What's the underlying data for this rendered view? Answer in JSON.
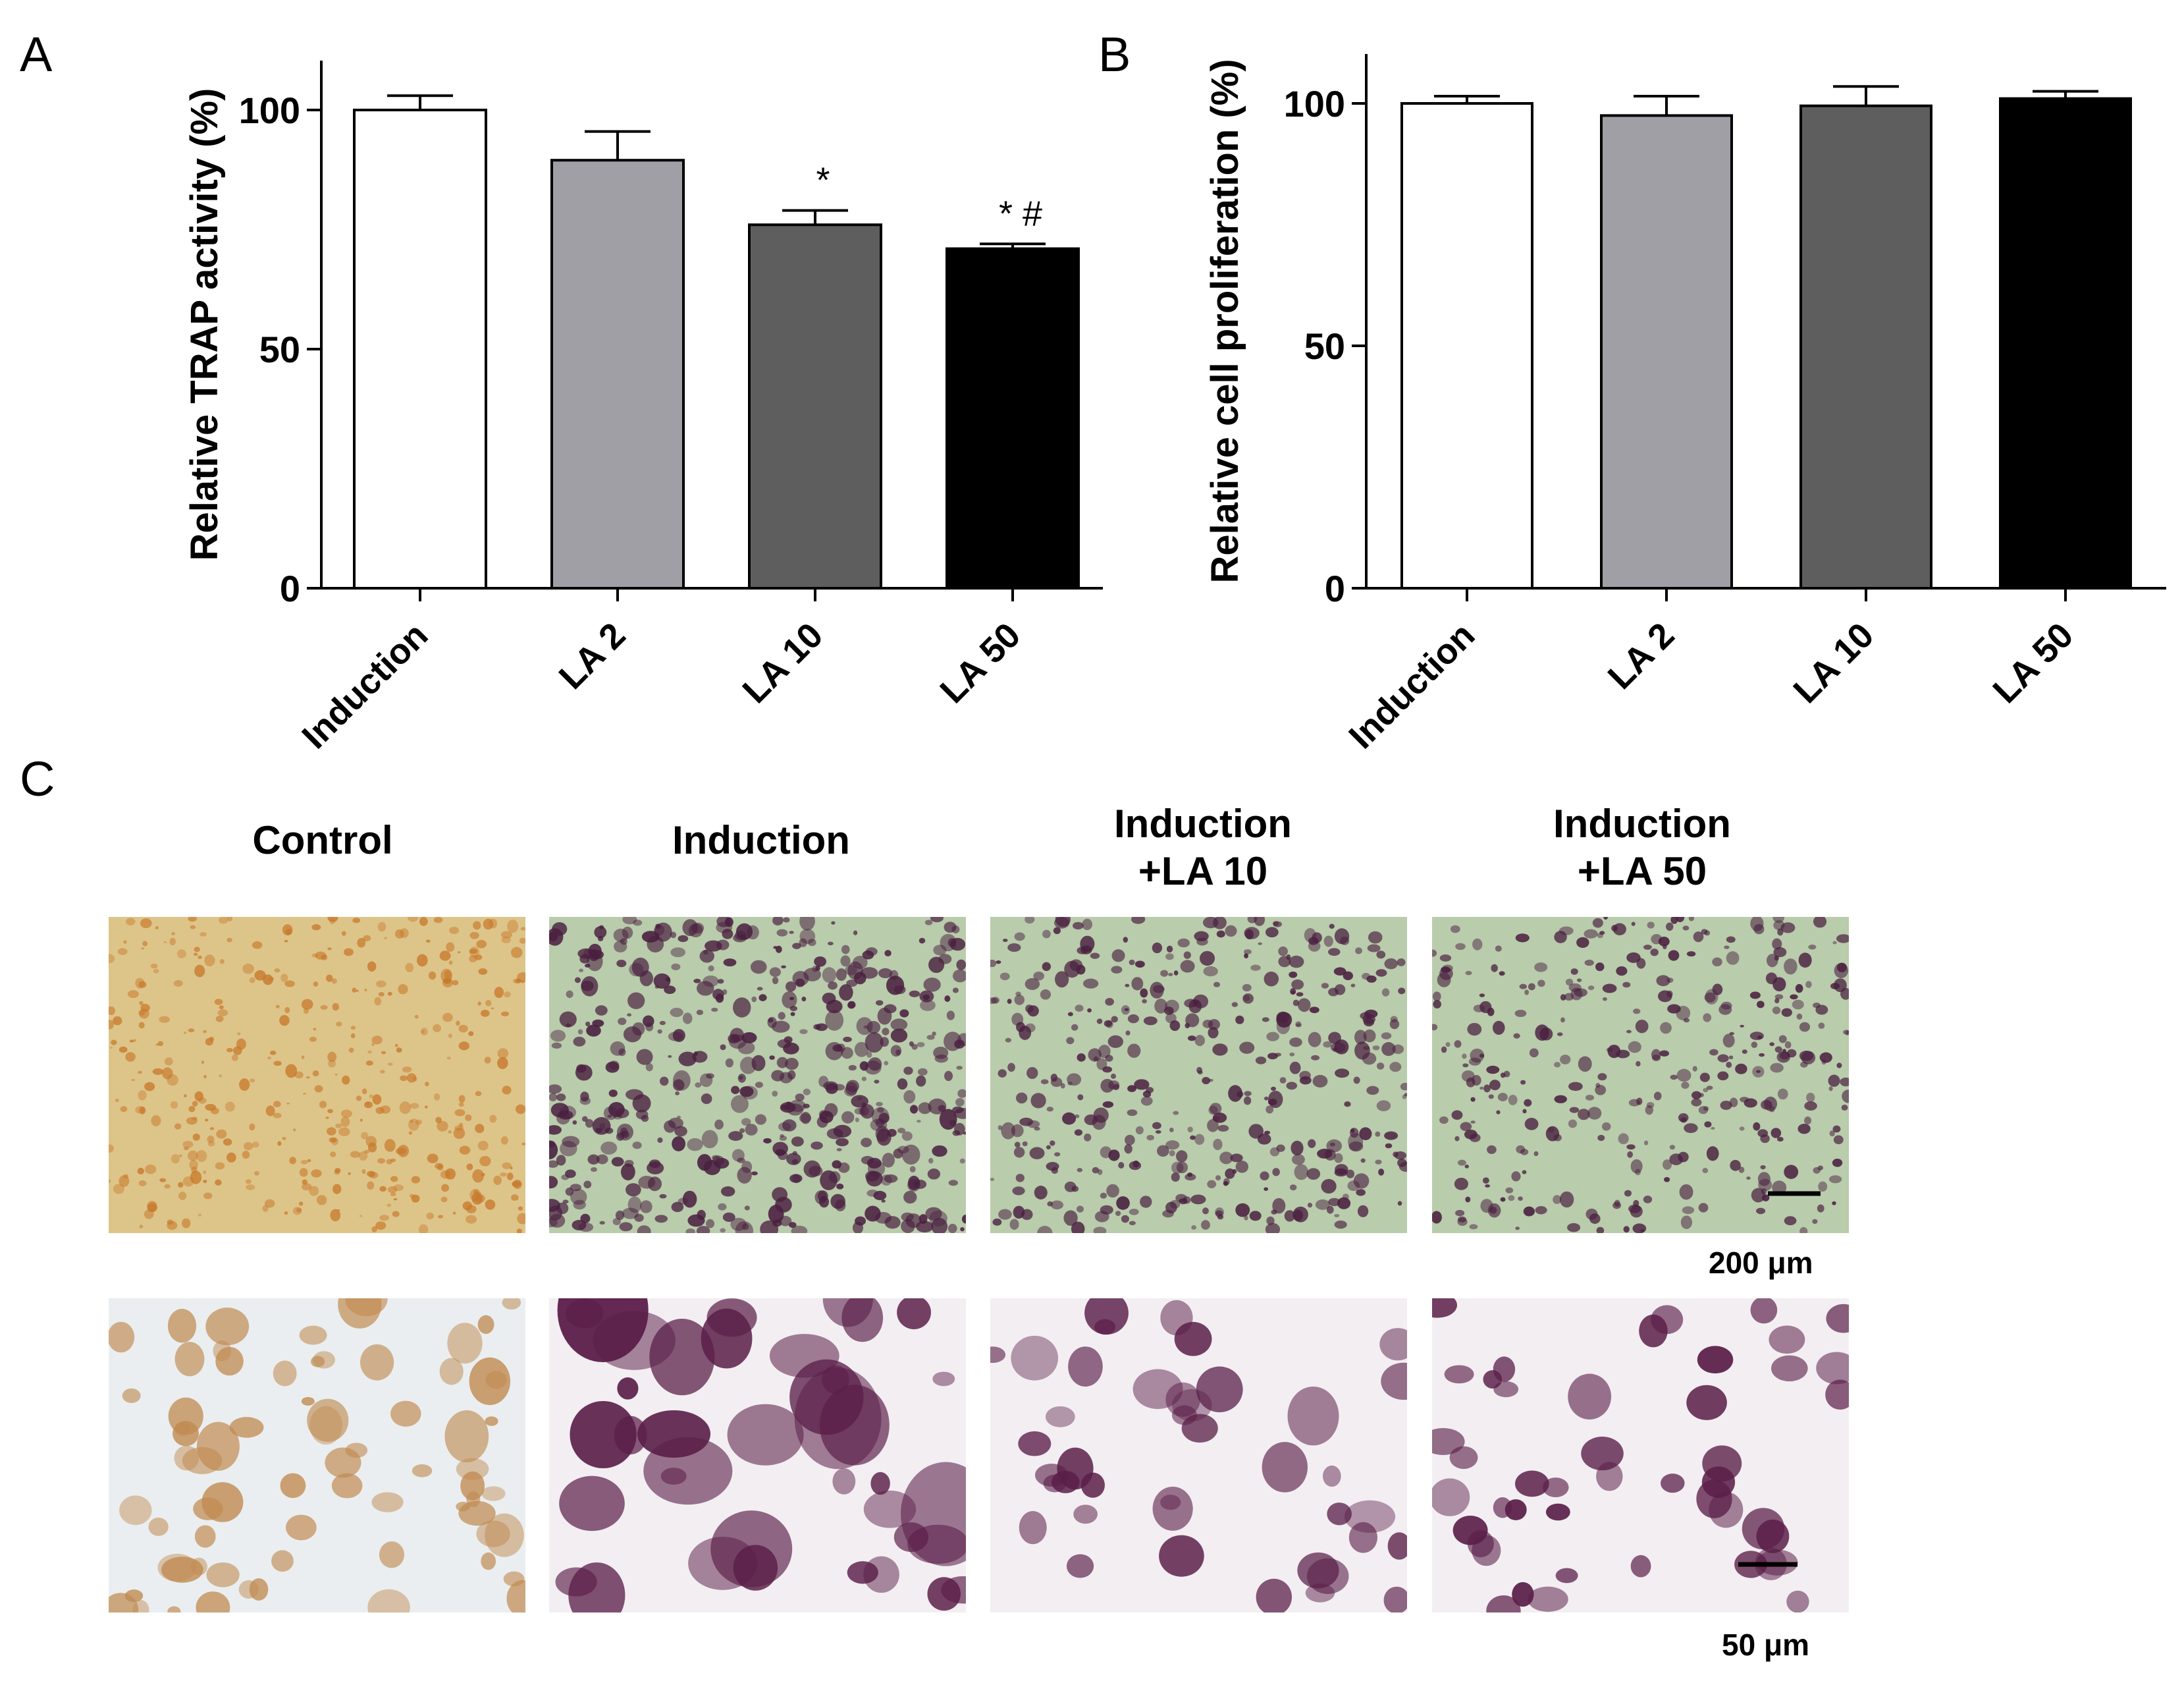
{
  "panels": {
    "a": "A",
    "b": "B",
    "c": "C"
  },
  "chart_data": [
    {
      "type": "bar",
      "panel": "A",
      "categories": [
        "Induction",
        "LA 2",
        "LA 10",
        "LA 50"
      ],
      "values": [
        100,
        89.5,
        76,
        71
      ],
      "errors": [
        3,
        6,
        3,
        1
      ],
      "annotations": [
        "",
        "",
        "*",
        "* #"
      ],
      "ylabel": "Relative TRAP activity (%)",
      "xlabel": "",
      "ylim": [
        0,
        100
      ],
      "yticks": [
        0,
        50,
        100
      ],
      "ytick_labels": [
        "0",
        "50",
        "100"
      ],
      "colors": [
        "#ffffff",
        "#a09fa5",
        "#5e5e5e",
        "#000000"
      ]
    },
    {
      "type": "bar",
      "panel": "B",
      "categories": [
        "Induction",
        "LA 2",
        "LA 10",
        "LA 50"
      ],
      "values": [
        100,
        97.5,
        99.5,
        101
      ],
      "errors": [
        1.5,
        4,
        4,
        1.5
      ],
      "annotations": [
        "",
        "",
        "",
        ""
      ],
      "ylabel": "Relative cell proliferation (%)",
      "xlabel": "",
      "ylim": [
        0,
        100
      ],
      "yticks": [
        0,
        50,
        100
      ],
      "ytick_labels": [
        "0",
        "50",
        "100"
      ],
      "colors": [
        "#ffffff",
        "#a09fa5",
        "#5e5e5e",
        "#000000"
      ]
    }
  ],
  "micrographs": {
    "columns": [
      {
        "line1": "Control",
        "line2": ""
      },
      {
        "line1": "Induction",
        "line2": ""
      },
      {
        "line1": "Induction",
        "line2": "+LA 10"
      },
      {
        "line1": "Induction",
        "line2": "+LA 50"
      }
    ],
    "scale_low": "200 μm",
    "scale_high": "50 μm",
    "low_colors": {
      "control_bg": "#ddc58a",
      "control_dot": "#c8782a",
      "induction_bg": "#b9ccac",
      "induction_dot": "#4a2040"
    },
    "high_colors": {
      "control_bg": "#eaeef0",
      "control_cell": "#c08a50",
      "induction_bg": "#f3eef2",
      "induction_cell": "#5a1e48"
    }
  }
}
